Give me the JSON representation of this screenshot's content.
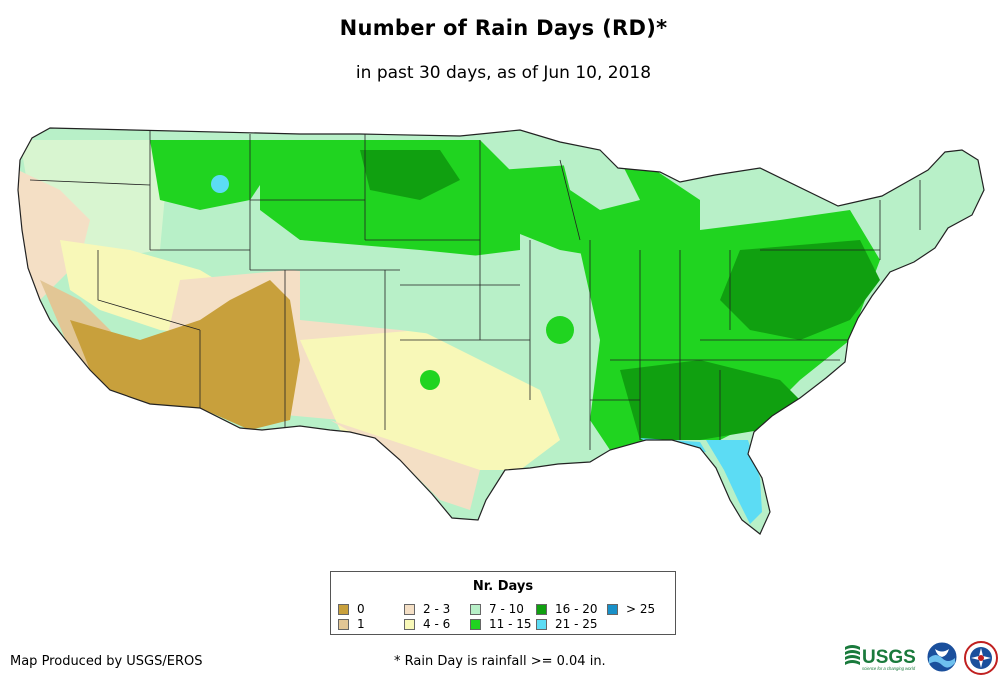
{
  "map": {
    "title": "Number of Rain Days (RD)*",
    "subtitle": "in past 30 days, as of Jun 10, 2018"
  },
  "legend": {
    "title": "Nr. Days",
    "items": [
      {
        "label": "0",
        "color": "#c8a03c"
      },
      {
        "label": "1",
        "color": "#e2c695"
      },
      {
        "label": "2 - 3",
        "color": "#f4dfc5"
      },
      {
        "label": "4 - 6",
        "color": "#f8f8b8"
      },
      {
        "label": "7 - 10",
        "color": "#b8f0c8"
      },
      {
        "label": "11 - 15",
        "color": "#20d420"
      },
      {
        "label": "16 - 20",
        "color": "#10a010"
      },
      {
        "label": "21 - 25",
        "color": "#5cdcf4"
      },
      {
        "label": "> 25",
        "color": "#1890c8"
      }
    ]
  },
  "footer": {
    "credit": "Map Produced by USGS/EROS",
    "footnote": "* Rain Day is rainfall >= 0.04 in.",
    "logos": [
      "usgs-logo",
      "noaa-logo",
      "nws-logo"
    ],
    "usgs_wordmark": "USGS",
    "usgs_tagline": "science for a changing world"
  }
}
